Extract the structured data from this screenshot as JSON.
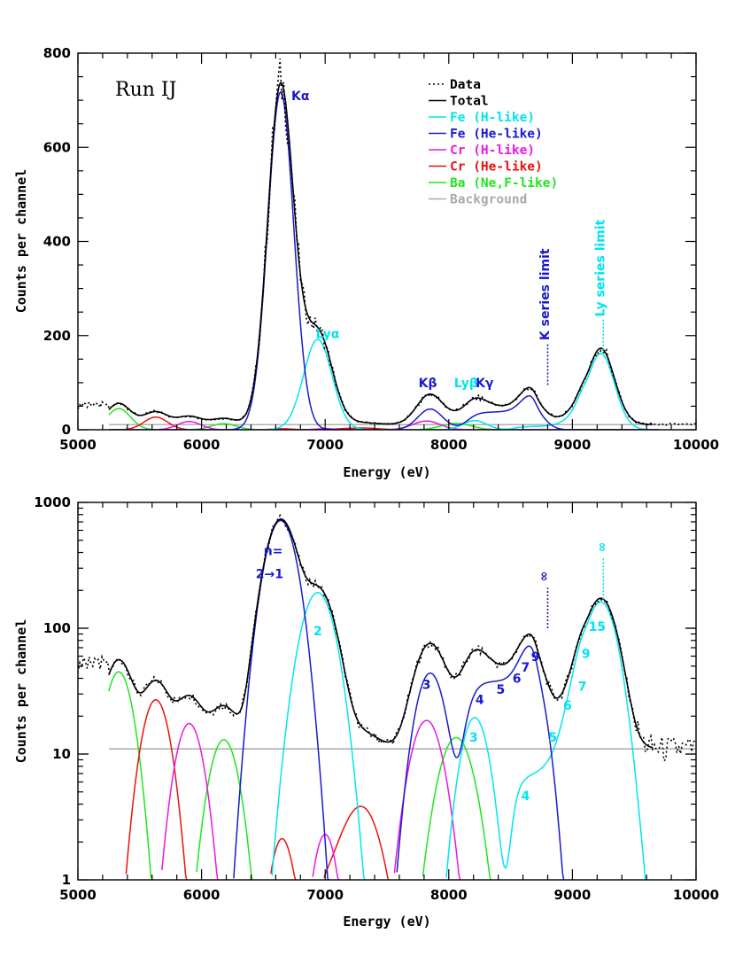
{
  "colors": {
    "data": "#000000",
    "total": "#000000",
    "fe_h": "#00e5ee",
    "fe_he": "#1a1acd",
    "cr_h": "#e619e6",
    "cr_he": "#e6140f",
    "ba": "#1ee61e",
    "background": "#aaaaaa"
  },
  "chart_data": [
    {
      "type": "line",
      "panel": "top",
      "run_label": "Run IJ",
      "xlabel": "Energy (eV)",
      "ylabel": "Counts per channel",
      "xlim": [
        5000,
        10000
      ],
      "ylim": [
        0,
        800
      ],
      "x_ticks": [
        "5000",
        "6000",
        "7000",
        "8000",
        "9000",
        "10000"
      ],
      "y_ticks": [
        "0",
        "200",
        "400",
        "600",
        "800"
      ],
      "legend": {
        "placement": "top-right",
        "entries": [
          {
            "label": "Data",
            "key": "data",
            "style": "dotted"
          },
          {
            "label": "Total",
            "key": "total",
            "style": "solid"
          },
          {
            "label": "Fe (H-like)",
            "key": "fe_h",
            "style": "solid"
          },
          {
            "label": "Fe (He-like)",
            "key": "fe_he",
            "style": "solid"
          },
          {
            "label": "Cr (H-like)",
            "key": "cr_h",
            "style": "solid"
          },
          {
            "label": "Cr (He-like)",
            "key": "cr_he",
            "style": "solid"
          },
          {
            "label": "Ba (Ne,F-like)",
            "key": "ba",
            "style": "solid"
          },
          {
            "label": "Background",
            "key": "background",
            "style": "solid"
          }
        ]
      },
      "annotations": [
        {
          "text": "Kα",
          "x": 6800,
          "y": 700,
          "color": "fe_he"
        },
        {
          "text": "Lyα",
          "x": 7020,
          "y": 195,
          "color": "fe_h"
        },
        {
          "text": "Kβ",
          "x": 7830,
          "y": 90,
          "color": "fe_he"
        },
        {
          "text": "Lyβ",
          "x": 8140,
          "y": 90,
          "color": "fe_h"
        },
        {
          "text": "Kγ",
          "x": 8290,
          "y": 90,
          "color": "fe_he"
        },
        {
          "text": "K series limit",
          "x": 8810,
          "y": 190,
          "color": "fe_he",
          "vertical": true
        },
        {
          "text": "Ly series limit",
          "x": 9260,
          "y": 240,
          "color": "fe_h",
          "vertical": true
        }
      ],
      "series_limits": [
        {
          "x": 8800,
          "y_from": 95,
          "y_to": 185,
          "color": "fe_he"
        },
        {
          "x": 9250,
          "y_from": 170,
          "y_to": 235,
          "color": "fe_h"
        }
      ],
      "background_level": 11
    },
    {
      "type": "line",
      "panel": "bottom",
      "xlabel": "Energy (eV)",
      "ylabel": "Counts per channel",
      "xlim": [
        5000,
        10000
      ],
      "ylim": [
        1,
        1000
      ],
      "yscale": "log",
      "x_ticks": [
        "5000",
        "6000",
        "7000",
        "8000",
        "9000",
        "10000"
      ],
      "y_ticks": [
        "1",
        "10",
        "100",
        "1000"
      ],
      "annotations": [
        {
          "text": "n=",
          "x": 6580,
          "y": 380,
          "color": "fe_he"
        },
        {
          "text": "2→1",
          "x": 6550,
          "y": 250,
          "color": "fe_he"
        },
        {
          "text": "∞",
          "x": 8800,
          "y": 235,
          "color": "fe_he",
          "vertical": true
        },
        {
          "text": "∞",
          "x": 9270,
          "y": 400,
          "color": "fe_h",
          "vertical": true
        },
        {
          "text": "2",
          "x": 6940,
          "y": 88,
          "color": "fe_h"
        },
        {
          "text": "3",
          "x": 7820,
          "y": 33,
          "color": "fe_he"
        },
        {
          "text": "4",
          "x": 8250,
          "y": 25,
          "color": "fe_he"
        },
        {
          "text": "5",
          "x": 8420,
          "y": 30,
          "color": "fe_he"
        },
        {
          "text": "6",
          "x": 8550,
          "y": 37,
          "color": "fe_he"
        },
        {
          "text": "7",
          "x": 8620,
          "y": 45,
          "color": "fe_he"
        },
        {
          "text": "9",
          "x": 8700,
          "y": 55,
          "color": "fe_he"
        },
        {
          "text": "3",
          "x": 8200,
          "y": 12.5,
          "color": "fe_h"
        },
        {
          "text": "4",
          "x": 8620,
          "y": 4.3,
          "color": "fe_h"
        },
        {
          "text": "5",
          "x": 8840,
          "y": 12.5,
          "color": "fe_h"
        },
        {
          "text": "6",
          "x": 8960,
          "y": 22.5,
          "color": "fe_h"
        },
        {
          "text": "7",
          "x": 9080,
          "y": 32,
          "color": "fe_h"
        },
        {
          "text": "9",
          "x": 9110,
          "y": 58,
          "color": "fe_h"
        },
        {
          "text": "15",
          "x": 9200,
          "y": 95,
          "color": "fe_h"
        }
      ],
      "series_limits": [
        {
          "x": 8800,
          "y_from": 100,
          "y_to": 210,
          "color": "fe_he"
        },
        {
          "x": 9250,
          "y_from": 170,
          "y_to": 360,
          "color": "fe_h"
        }
      ],
      "background_level": 11
    }
  ]
}
